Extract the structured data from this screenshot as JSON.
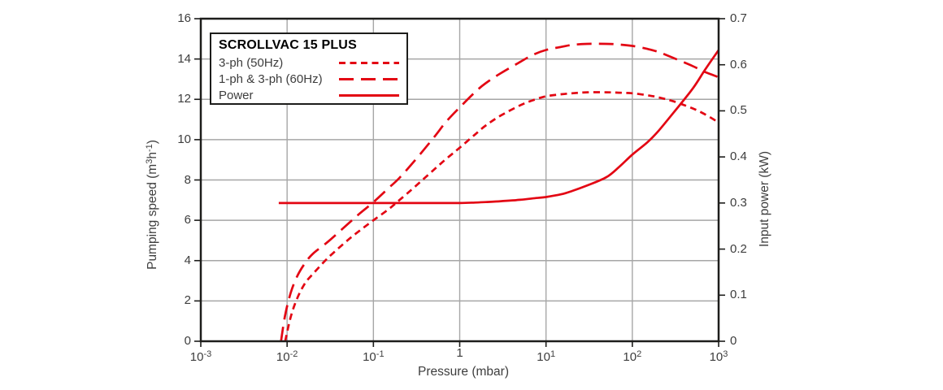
{
  "colors": {
    "red": "#e30613",
    "grid": "#a6a6a6",
    "axis": "#1d1d1b",
    "text": "#3d3d3d",
    "background": "#ffffff"
  },
  "chart_data": {
    "type": "line",
    "title": "SCROLLVAC 15 PLUS",
    "x_axis": {
      "label": "Pressure (mbar)",
      "scale": "log",
      "min": 0.001,
      "max": 1000,
      "ticks": [
        {
          "value": 0.001,
          "base": "10",
          "exp": "-3"
        },
        {
          "value": 0.01,
          "base": "10",
          "exp": "-2"
        },
        {
          "value": 0.1,
          "base": "10",
          "exp": "-1"
        },
        {
          "value": 1,
          "base": "1",
          "exp": ""
        },
        {
          "value": 10,
          "base": "10",
          "exp": "1"
        },
        {
          "value": 100,
          "base": "10",
          "exp": "2"
        },
        {
          "value": 1000,
          "base": "10",
          "exp": "3"
        }
      ]
    },
    "y_axis_left": {
      "label": "Pumping speed (m³h⁻¹)",
      "label_parts": [
        {
          "t": "Pumping speed (m"
        },
        {
          "t": "3",
          "sup": true
        },
        {
          "t": "h"
        },
        {
          "t": "-1",
          "sup": true
        },
        {
          "t": ")"
        }
      ],
      "min": 0,
      "max": 16,
      "tick_values": [
        0,
        2,
        4,
        6,
        8,
        10,
        12,
        14,
        16
      ],
      "tick_labels": [
        "0",
        "2",
        "4",
        "6",
        "8",
        "10",
        "12",
        "14",
        "16"
      ]
    },
    "y_axis_right": {
      "label": "Input power (kW)",
      "min": 0,
      "max": 0.7,
      "tick_values": [
        0,
        0.1,
        0.2,
        0.3,
        0.4,
        0.5,
        0.6,
        0.7
      ],
      "tick_labels": [
        "0",
        "0.1",
        "0.2",
        "0.3",
        "0.4",
        "0.5",
        "0.6",
        "0.7"
      ]
    },
    "grid": {
      "vertical_at_decades": true,
      "horizontal_step": 2
    },
    "legend": {
      "title": "SCROLLVAC 15 PLUS",
      "position": "top-left",
      "items": [
        {
          "label": "3-ph (50Hz)",
          "line_style": "short-dash"
        },
        {
          "label": "1-ph & 3-ph (60Hz)",
          "line_style": "long-dash"
        },
        {
          "label": "Power",
          "line_style": "solid"
        }
      ]
    },
    "series": [
      {
        "name": "3-ph (50Hz)",
        "axis": "left",
        "unit": "m3/h",
        "line_style": "short-dash",
        "points": [
          [
            0.0095,
            0
          ],
          [
            0.011,
            1.2
          ],
          [
            0.013,
            2.1
          ],
          [
            0.016,
            2.85
          ],
          [
            0.02,
            3.35
          ],
          [
            0.03,
            4.15
          ],
          [
            0.05,
            5.0
          ],
          [
            0.07,
            5.5
          ],
          [
            0.1,
            6.0
          ],
          [
            0.15,
            6.55
          ],
          [
            0.2,
            7.0
          ],
          [
            0.3,
            7.65
          ],
          [
            0.5,
            8.5
          ],
          [
            0.7,
            9.05
          ],
          [
            1,
            9.6
          ],
          [
            1.5,
            10.25
          ],
          [
            2,
            10.7
          ],
          [
            3,
            11.2
          ],
          [
            5,
            11.7
          ],
          [
            7,
            11.95
          ],
          [
            10,
            12.15
          ],
          [
            15,
            12.25
          ],
          [
            20,
            12.3
          ],
          [
            30,
            12.35
          ],
          [
            50,
            12.35
          ],
          [
            70,
            12.33
          ],
          [
            100,
            12.3
          ],
          [
            150,
            12.2
          ],
          [
            200,
            12.1
          ],
          [
            300,
            11.9
          ],
          [
            500,
            11.55
          ],
          [
            700,
            11.25
          ],
          [
            1000,
            10.85
          ]
        ]
      },
      {
        "name": "1-ph & 3-ph (60Hz)",
        "axis": "left",
        "unit": "m3/h",
        "line_style": "long-dash",
        "points": [
          [
            0.0085,
            0
          ],
          [
            0.0095,
            1.3
          ],
          [
            0.011,
            2.4
          ],
          [
            0.013,
            3.2
          ],
          [
            0.016,
            3.85
          ],
          [
            0.02,
            4.35
          ],
          [
            0.03,
            4.95
          ],
          [
            0.05,
            5.8
          ],
          [
            0.07,
            6.35
          ],
          [
            0.1,
            6.9
          ],
          [
            0.15,
            7.6
          ],
          [
            0.2,
            8.1
          ],
          [
            0.3,
            8.95
          ],
          [
            0.5,
            10.1
          ],
          [
            0.7,
            10.9
          ],
          [
            1,
            11.6
          ],
          [
            1.5,
            12.35
          ],
          [
            2,
            12.8
          ],
          [
            3,
            13.3
          ],
          [
            5,
            13.85
          ],
          [
            7,
            14.2
          ],
          [
            10,
            14.45
          ],
          [
            15,
            14.6
          ],
          [
            20,
            14.7
          ],
          [
            30,
            14.75
          ],
          [
            50,
            14.75
          ],
          [
            70,
            14.72
          ],
          [
            100,
            14.65
          ],
          [
            150,
            14.5
          ],
          [
            200,
            14.35
          ],
          [
            300,
            14.05
          ],
          [
            500,
            13.65
          ],
          [
            700,
            13.35
          ],
          [
            1000,
            13.1
          ]
        ]
      },
      {
        "name": "Power",
        "axis": "right",
        "unit": "kW",
        "line_style": "solid",
        "points": [
          [
            0.008,
            0.3
          ],
          [
            0.02,
            0.3
          ],
          [
            0.05,
            0.3
          ],
          [
            0.1,
            0.3
          ],
          [
            0.2,
            0.3
          ],
          [
            0.5,
            0.3
          ],
          [
            1,
            0.3
          ],
          [
            1.5,
            0.301
          ],
          [
            2,
            0.302
          ],
          [
            3,
            0.304
          ],
          [
            5,
            0.307
          ],
          [
            7,
            0.31
          ],
          [
            10,
            0.313
          ],
          [
            15,
            0.319
          ],
          [
            20,
            0.326
          ],
          [
            30,
            0.338
          ],
          [
            50,
            0.356
          ],
          [
            70,
            0.378
          ],
          [
            100,
            0.405
          ],
          [
            150,
            0.432
          ],
          [
            200,
            0.456
          ],
          [
            300,
            0.496
          ],
          [
            500,
            0.548
          ],
          [
            700,
            0.59
          ],
          [
            1000,
            0.632
          ]
        ]
      }
    ]
  }
}
